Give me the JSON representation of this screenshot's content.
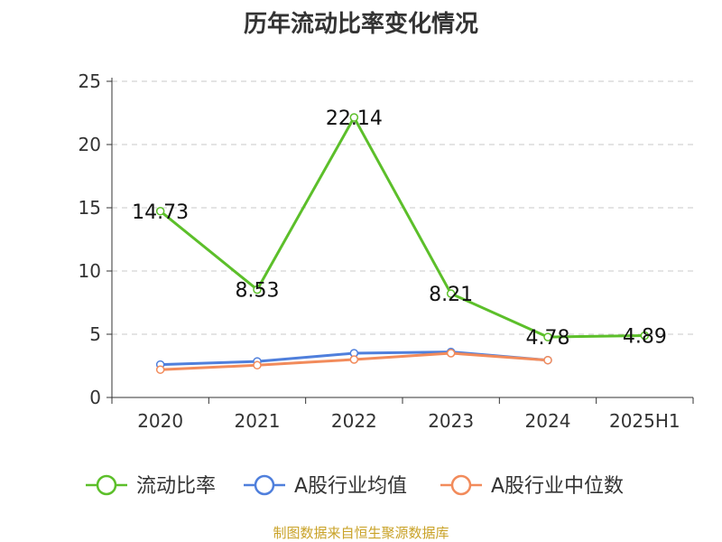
{
  "chart_data": {
    "type": "line",
    "title": "历年流动比率变化情况",
    "categories": [
      "2020",
      "2021",
      "2022",
      "2023",
      "2024",
      "2025H1"
    ],
    "ylim": [
      0,
      25
    ],
    "yticks": [
      "0",
      "5",
      "10",
      "15",
      "20",
      "25"
    ],
    "grid": true,
    "legend_position": "bottom",
    "series": [
      {
        "name": "流动比率",
        "color": "#5cbf2a",
        "values": [
          14.73,
          8.53,
          22.14,
          8.21,
          4.78,
          4.89
        ],
        "labels": [
          "14.73",
          "8.53",
          "22.14",
          "8.21",
          "4.78",
          "4.89"
        ]
      },
      {
        "name": "A股行业均值",
        "color": "#4f7fdc",
        "values": [
          2.6,
          2.85,
          3.5,
          3.6,
          2.95,
          null
        ]
      },
      {
        "name": "A股行业中位数",
        "color": "#f28b5b",
        "values": [
          2.2,
          2.55,
          3.0,
          3.5,
          2.95,
          null
        ]
      }
    ]
  },
  "source_text": "制图数据来自恒生聚源数据库",
  "source_color": "#c9a227"
}
